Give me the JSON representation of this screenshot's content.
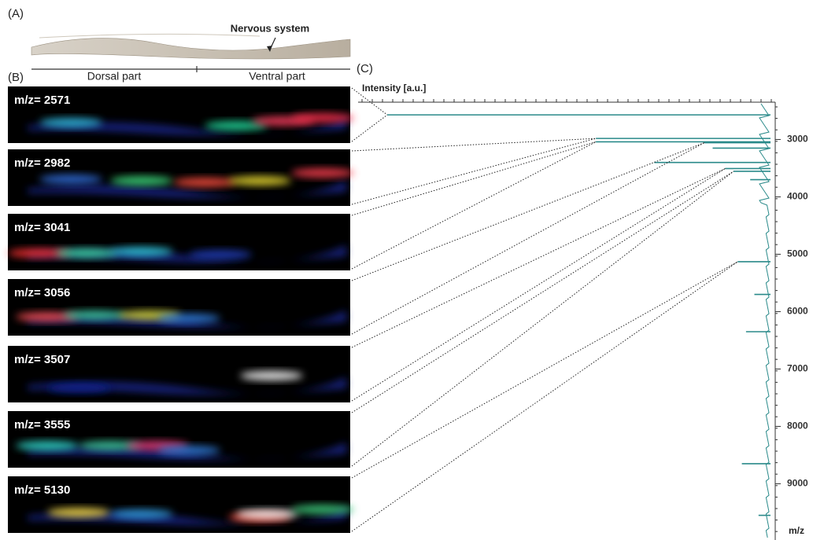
{
  "panel_a": {
    "label": "(A)",
    "annotation": "Nervous system",
    "left_region": "Dorsal part",
    "right_region": "Ventral part"
  },
  "panel_b": {
    "label": "(B)",
    "images": [
      "m/z= 2571",
      "m/z= 2982",
      "m/z= 3041",
      "m/z= 3056",
      "m/z= 3507",
      "m/z= 3555",
      "m/z= 5130"
    ]
  },
  "chart_data": {
    "type": "spectrum",
    "label": "(C)",
    "xlabel": "m/z",
    "ylabel": "Intensity [a.u.]",
    "x": [
      2571,
      2982,
      3041,
      3056,
      3507,
      3555,
      5130,
      3150,
      3400,
      3700,
      5700,
      6350,
      8650,
      9550
    ],
    "values": [
      93,
      43,
      43,
      17,
      12,
      10,
      9,
      15,
      29,
      6,
      5,
      7,
      8,
      4
    ],
    "color": "#2a8a8a",
    "xlim": [
      2350,
      9980
    ],
    "xticks": [
      3000,
      4000,
      5000,
      6000,
      7000,
      8000,
      9000
    ],
    "ylim": [
      0,
      100
    ]
  }
}
